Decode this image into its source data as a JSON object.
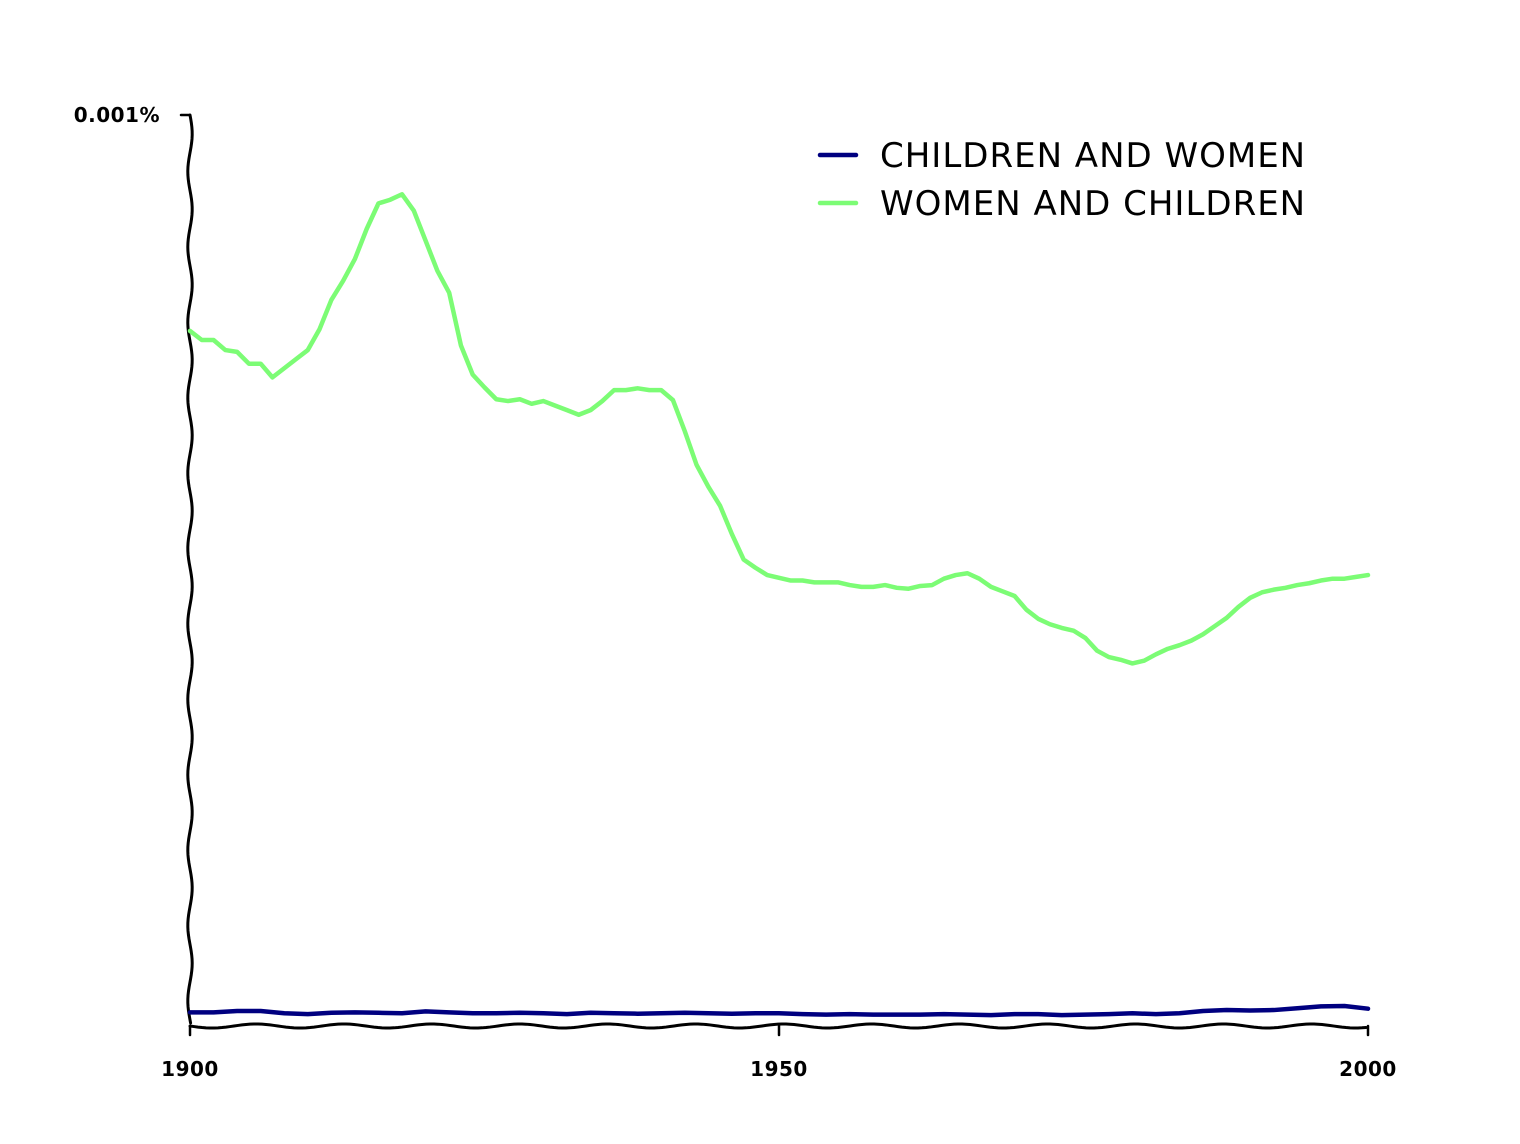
{
  "chart_data": {
    "type": "line",
    "title": "",
    "xlabel": "",
    "ylabel": "",
    "xlim": [
      1900,
      2000
    ],
    "ylim": [
      0,
      0.001
    ],
    "x_ticks": [
      {
        "value": 1900,
        "label": "1900"
      },
      {
        "value": 1950,
        "label": "1950"
      },
      {
        "value": 2000,
        "label": "2000"
      }
    ],
    "y_ticks": [
      {
        "value": 0.001,
        "label": "0.001%"
      }
    ],
    "grid": false,
    "legend_position": "top-right",
    "series": [
      {
        "name": "CHILDREN AND WOMEN",
        "color": "#000080",
        "x": [
          1900,
          1902,
          1904,
          1906,
          1908,
          1910,
          1912,
          1914,
          1916,
          1918,
          1920,
          1922,
          1924,
          1926,
          1928,
          1930,
          1932,
          1934,
          1936,
          1938,
          1940,
          1942,
          1944,
          1946,
          1948,
          1950,
          1952,
          1954,
          1956,
          1958,
          1960,
          1962,
          1964,
          1966,
          1968,
          1970,
          1972,
          1974,
          1976,
          1978,
          1980,
          1982,
          1984,
          1986,
          1988,
          1990,
          1992,
          1994,
          1996,
          1998,
          2000
        ],
        "y": [
          1.5e-05,
          1.5e-05,
          1.65e-05,
          1.65e-05,
          1.4e-05,
          1.3e-05,
          1.45e-05,
          1.5e-05,
          1.45e-05,
          1.4e-05,
          1.6e-05,
          1.5e-05,
          1.4e-05,
          1.4e-05,
          1.45e-05,
          1.4e-05,
          1.3e-05,
          1.45e-05,
          1.4e-05,
          1.35e-05,
          1.4e-05,
          1.45e-05,
          1.4e-05,
          1.35e-05,
          1.4e-05,
          1.4e-05,
          1.3e-05,
          1.25e-05,
          1.3e-05,
          1.25e-05,
          1.25e-05,
          1.25e-05,
          1.3e-05,
          1.25e-05,
          1.2e-05,
          1.3e-05,
          1.3e-05,
          1.2e-05,
          1.25e-05,
          1.3e-05,
          1.4e-05,
          1.3e-05,
          1.4e-05,
          1.65e-05,
          1.75e-05,
          1.7e-05,
          1.75e-05,
          1.95e-05,
          2.15e-05,
          2.2e-05,
          1.9e-05
        ]
      },
      {
        "name": "WOMEN AND CHILDREN",
        "color": "#7cfc75",
        "x": [
          1900,
          1901,
          1902,
          1903,
          1904,
          1905,
          1906,
          1907,
          1908,
          1909,
          1910,
          1911,
          1912,
          1913,
          1914,
          1915,
          1916,
          1917,
          1918,
          1919,
          1920,
          1921,
          1922,
          1923,
          1924,
          1925,
          1926,
          1927,
          1928,
          1929,
          1930,
          1931,
          1932,
          1933,
          1934,
          1935,
          1936,
          1937,
          1938,
          1939,
          1940,
          1941,
          1942,
          1943,
          1944,
          1945,
          1946,
          1947,
          1948,
          1949,
          1950,
          1951,
          1952,
          1953,
          1954,
          1955,
          1956,
          1957,
          1958,
          1959,
          1960,
          1961,
          1962,
          1963,
          1964,
          1965,
          1966,
          1967,
          1968,
          1969,
          1970,
          1971,
          1972,
          1973,
          1974,
          1975,
          1976,
          1977,
          1978,
          1979,
          1980,
          1981,
          1982,
          1983,
          1984,
          1985,
          1986,
          1987,
          1988,
          1989,
          1990,
          1991,
          1992,
          1993,
          1994,
          1995,
          1996,
          1997,
          1998,
          1999,
          2000
        ],
        "y": [
          0.000763,
          0.000753,
          0.000753,
          0.000742,
          0.00074,
          0.000727,
          0.000727,
          0.000712,
          0.000722,
          0.000732,
          0.000742,
          0.000765,
          0.000797,
          0.000818,
          0.000842,
          0.000875,
          0.000903,
          0.000907,
          0.000913,
          0.000895,
          0.000862,
          0.000829,
          0.000805,
          0.000747,
          0.000715,
          0.000701,
          0.000688,
          0.000686,
          0.000688,
          0.000683,
          0.000686,
          0.000681,
          0.000676,
          0.000671,
          0.000676,
          0.000686,
          0.000698,
          0.000698,
          0.0007,
          0.000698,
          0.000698,
          0.000687,
          0.000653,
          0.000616,
          0.000592,
          0.000571,
          0.00054,
          0.000512,
          0.000503,
          0.000495,
          0.000492,
          0.000489,
          0.000489,
          0.000487,
          0.000487,
          0.000487,
          0.000484,
          0.000482,
          0.000482,
          0.000484,
          0.000481,
          0.00048,
          0.000483,
          0.000484,
          0.000491,
          0.000495,
          0.000497,
          0.000491,
          0.000482,
          0.000477,
          0.000472,
          0.000457,
          0.000447,
          0.000441,
          0.000437,
          0.000434,
          0.000426,
          0.000412,
          0.000405,
          0.000402,
          0.000398,
          0.000401,
          0.000408,
          0.000414,
          0.000418,
          0.000423,
          0.00043,
          0.000439,
          0.000448,
          0.00046,
          0.00047,
          0.000476,
          0.000479,
          0.000481,
          0.000484,
          0.000486,
          0.000489,
          0.000491,
          0.000491,
          0.000493,
          0.000495
        ]
      }
    ]
  }
}
